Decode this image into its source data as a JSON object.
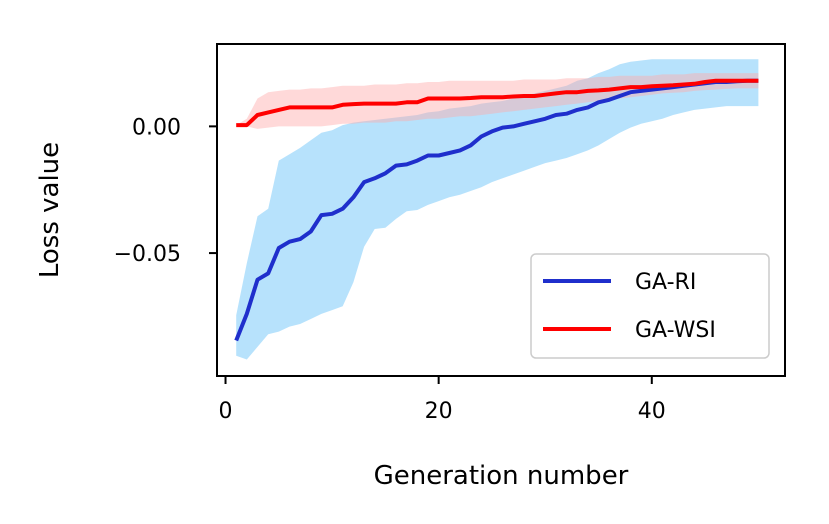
{
  "chart_data": {
    "type": "line",
    "title": "",
    "xlabel": "Generation number",
    "ylabel": "Loss value",
    "xlim": [
      -0.8,
      52.5
    ],
    "ylim": [
      -0.0985,
      0.0325
    ],
    "xticks": [
      0,
      20,
      40
    ],
    "xtick_labels": [
      "0",
      "20",
      "40"
    ],
    "yticks": [
      0.0,
      -0.05
    ],
    "ytick_labels": [
      "0.00",
      "−0.05"
    ],
    "grid": false,
    "legend_position": "lower-right",
    "series": [
      {
        "name": "GA-RI",
        "color": "#1f2fcc",
        "band_color": "#87cefa",
        "x": [
          1,
          2,
          3,
          4,
          5,
          6,
          7,
          8,
          9,
          10,
          11,
          12,
          13,
          14,
          15,
          16,
          17,
          18,
          19,
          20,
          21,
          22,
          23,
          24,
          25,
          26,
          27,
          28,
          29,
          30,
          31,
          32,
          33,
          34,
          35,
          36,
          37,
          38,
          39,
          40,
          41,
          42,
          43,
          44,
          45,
          46,
          47,
          48,
          49,
          50
        ],
        "mean": [
          -0.0845,
          -0.074,
          -0.0605,
          -0.058,
          -0.048,
          -0.0455,
          -0.0445,
          -0.0415,
          -0.035,
          -0.0345,
          -0.0325,
          -0.028,
          -0.022,
          -0.0205,
          -0.0185,
          -0.0155,
          -0.015,
          -0.0135,
          -0.0115,
          -0.0115,
          -0.0105,
          -0.0095,
          -0.0075,
          -0.004,
          -0.002,
          -0.0005,
          0.0,
          0.001,
          0.002,
          0.003,
          0.0045,
          0.005,
          0.0065,
          0.0075,
          0.0095,
          0.0105,
          0.012,
          0.0135,
          0.014,
          0.0145,
          0.015,
          0.0155,
          0.016,
          0.0165,
          0.017,
          0.0175,
          0.0175,
          0.0178,
          0.018,
          0.018
        ],
        "lower": [
          -0.0905,
          -0.092,
          -0.087,
          -0.082,
          -0.081,
          -0.079,
          -0.078,
          -0.076,
          -0.074,
          -0.0725,
          -0.071,
          -0.0615,
          -0.0475,
          -0.0405,
          -0.04,
          -0.0365,
          -0.0335,
          -0.033,
          -0.031,
          -0.0295,
          -0.028,
          -0.027,
          -0.0255,
          -0.024,
          -0.022,
          -0.0205,
          -0.019,
          -0.0175,
          -0.016,
          -0.0145,
          -0.0135,
          -0.0125,
          -0.011,
          -0.0095,
          -0.0075,
          -0.005,
          -0.0025,
          -0.0005,
          0.001,
          0.002,
          0.003,
          0.0045,
          0.0055,
          0.0065,
          0.007,
          0.0075,
          0.008,
          0.008,
          0.008,
          0.008
        ],
        "upper": [
          -0.0745,
          -0.054,
          -0.0355,
          -0.0325,
          -0.0135,
          -0.011,
          -0.0085,
          -0.0055,
          -0.0025,
          -0.0015,
          0.0005,
          0.0015,
          0.002,
          0.0025,
          0.003,
          0.0035,
          0.004,
          0.0045,
          0.0055,
          0.006,
          0.007,
          0.0075,
          0.008,
          0.009,
          0.0095,
          0.01,
          0.011,
          0.012,
          0.013,
          0.014,
          0.015,
          0.016,
          0.018,
          0.019,
          0.021,
          0.0225,
          0.0245,
          0.0255,
          0.026,
          0.0265,
          0.0265,
          0.0265,
          0.0265,
          0.0265,
          0.0265,
          0.0265,
          0.0265,
          0.0265,
          0.0265,
          0.0265
        ]
      },
      {
        "name": "GA-WSI",
        "color": "#ff0000",
        "band_color": "#ffaaaa",
        "x": [
          1,
          2,
          3,
          4,
          5,
          6,
          7,
          8,
          9,
          10,
          11,
          12,
          13,
          14,
          15,
          16,
          17,
          18,
          19,
          20,
          21,
          22,
          23,
          24,
          25,
          26,
          27,
          28,
          29,
          30,
          31,
          32,
          33,
          34,
          35,
          36,
          37,
          38,
          39,
          40,
          41,
          42,
          43,
          44,
          45,
          46,
          47,
          48,
          49,
          50
        ],
        "mean": [
          0.0005,
          0.0005,
          0.0045,
          0.0055,
          0.0065,
          0.0075,
          0.0075,
          0.0075,
          0.0075,
          0.0075,
          0.0085,
          0.0088,
          0.009,
          0.009,
          0.009,
          0.009,
          0.0095,
          0.0095,
          0.011,
          0.011,
          0.011,
          0.011,
          0.0112,
          0.0115,
          0.0115,
          0.0115,
          0.0118,
          0.012,
          0.012,
          0.0125,
          0.013,
          0.0135,
          0.0135,
          0.014,
          0.0142,
          0.0145,
          0.015,
          0.0155,
          0.0155,
          0.0158,
          0.016,
          0.0162,
          0.0165,
          0.0168,
          0.0175,
          0.018,
          0.018,
          0.018,
          0.018,
          0.018
        ],
        "lower": [
          0.0005,
          0.0,
          -0.001,
          -0.0005,
          0.0,
          0.0,
          0.0,
          0.0,
          0.0,
          0.0005,
          0.001,
          0.001,
          0.0015,
          0.0015,
          0.0015,
          0.002,
          0.002,
          0.0025,
          0.003,
          0.003,
          0.0035,
          0.004,
          0.004,
          0.0045,
          0.005,
          0.0055,
          0.006,
          0.0065,
          0.007,
          0.0075,
          0.008,
          0.0085,
          0.009,
          0.0095,
          0.01,
          0.0105,
          0.011,
          0.0115,
          0.012,
          0.0125,
          0.013,
          0.0133,
          0.0135,
          0.014,
          0.0143,
          0.0145,
          0.0148,
          0.015,
          0.015,
          0.015
        ],
        "upper": [
          0.0005,
          0.003,
          0.011,
          0.0135,
          0.014,
          0.0145,
          0.0145,
          0.015,
          0.015,
          0.0155,
          0.016,
          0.016,
          0.016,
          0.0165,
          0.0165,
          0.0165,
          0.017,
          0.017,
          0.0175,
          0.0175,
          0.018,
          0.018,
          0.018,
          0.018,
          0.018,
          0.018,
          0.018,
          0.0185,
          0.0185,
          0.0185,
          0.0185,
          0.019,
          0.019,
          0.019,
          0.0195,
          0.0195,
          0.02,
          0.02,
          0.02,
          0.02,
          0.0205,
          0.0205,
          0.0205,
          0.021,
          0.021,
          0.021,
          0.021,
          0.021,
          0.021,
          0.021
        ]
      }
    ]
  }
}
